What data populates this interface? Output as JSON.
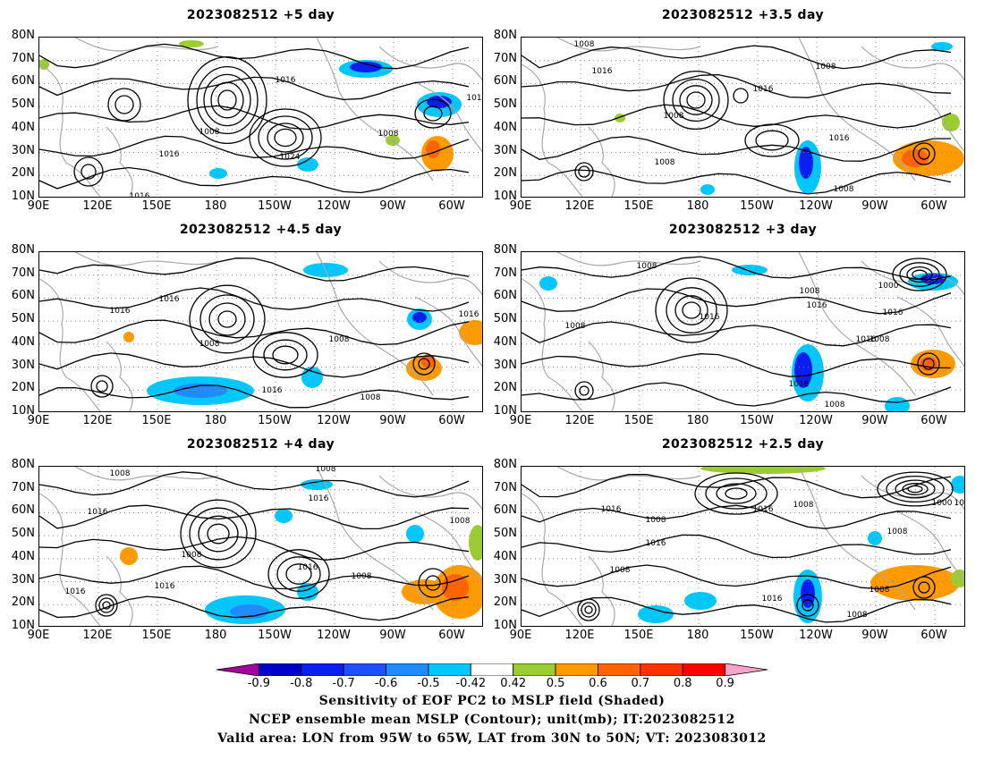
{
  "panels": [
    {
      "title": "2023082512  +5 day"
    },
    {
      "title": "2023082512  +3.5 day"
    },
    {
      "title": "2023082512  +4.5 day"
    },
    {
      "title": "2023082512  +3 day"
    },
    {
      "title": "2023082512  +4 day"
    },
    {
      "title": "2023082512  +2.5 day"
    }
  ],
  "axes": {
    "lat_labels": [
      "80N",
      "70N",
      "60N",
      "50N",
      "40N",
      "30N",
      "20N",
      "10N"
    ],
    "lon_labels": [
      "90E",
      "120E",
      "150E",
      "180",
      "150W",
      "120W",
      "90W",
      "60W"
    ]
  },
  "contour_labels": {
    "p0": [
      "1016",
      "1008",
      "1016",
      "1024",
      "1016",
      "1008",
      "101"
    ],
    "p1": [
      "1008",
      "1016",
      "1008",
      "1008",
      "1016",
      "1016",
      "1008",
      "1008"
    ],
    "p2": [
      "1016",
      "1016",
      "1008",
      "1008",
      "1016",
      "1008",
      "1016"
    ],
    "p3": [
      "1008",
      "1000",
      "1008",
      "1016",
      "1008",
      "1016",
      "1016",
      "1016",
      "1008",
      "1016",
      "1008"
    ],
    "p4": [
      "1008",
      "1008",
      "1016",
      "1016",
      "1008",
      "1016",
      "1016",
      "1008",
      "1008",
      "1016"
    ],
    "p5": [
      "1016",
      "1008",
      "1016",
      "1016",
      "1008",
      "1008",
      "1016",
      "1000",
      "1016",
      "1008",
      "1008",
      "1008"
    ]
  },
  "colorbar": {
    "labels": [
      "-0.9",
      "-0.8",
      "-0.7",
      "-0.6",
      "-0.5",
      "-0.42",
      "0.42",
      "0.5",
      "0.6",
      "0.7",
      "0.8",
      "0.9"
    ],
    "colors": [
      "#a0009f",
      "#0000c8",
      "#0a1ef0",
      "#1e50ff",
      "#1e8cff",
      "#00c8ff",
      "#ffffff",
      "#9bcd32",
      "#ff9b00",
      "#ff6400",
      "#ff3200",
      "#ff0000",
      "#ffa0c8"
    ]
  },
  "caption": {
    "line1": "Sensitivity of EOF PC2 to MSLP field (Shaded)",
    "line2": "NCEP ensemble mean MSLP (Contour); unit(mb); IT:2023082512",
    "line3": "Valid area: LON from 95W to 65W, LAT from 30N to 50N; VT: 2023083012"
  }
}
